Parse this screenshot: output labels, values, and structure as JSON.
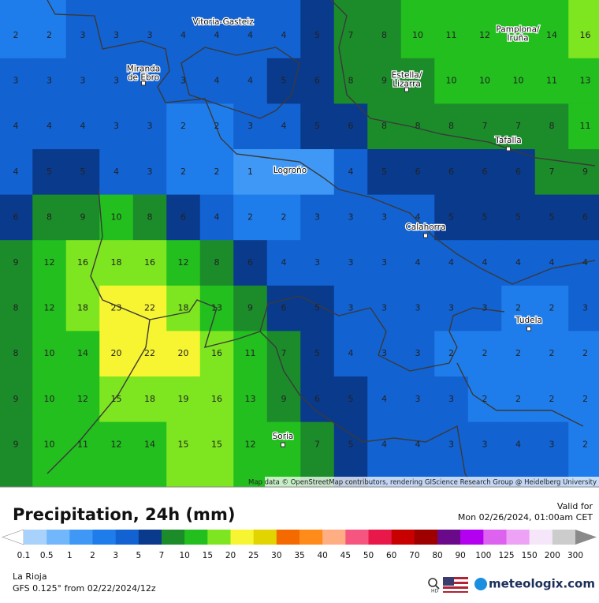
{
  "header": {
    "title": "Precipitation, 24h (mm)",
    "valid_label": "Valid for",
    "valid_time": "Mon 02/26/2024, 01:00am CET"
  },
  "map": {
    "attribution": "Map data © OpenStreetMap contributors, rendering GIScience Research Group @ Heidelberg University",
    "cities": [
      "Vitoria-Gasteiz",
      "Miranda\nde Ebro",
      "Pamplona/\nIruña",
      "Estella/\nLizarra",
      "Tafalla",
      "Logroño",
      "Calahorra",
      "Tudela",
      "Soria"
    ],
    "grid": {
      "rows": [
        [
          2,
          2,
          3,
          3,
          3,
          4,
          4,
          4,
          4,
          5,
          7,
          8,
          10,
          11,
          12,
          null,
          14,
          16
        ],
        [
          3,
          3,
          3,
          3,
          null,
          3,
          4,
          4,
          5,
          6,
          8,
          9,
          null,
          10,
          10,
          10,
          11,
          13
        ],
        [
          4,
          4,
          4,
          3,
          3,
          2,
          2,
          3,
          4,
          5,
          6,
          8,
          8,
          8,
          7,
          7,
          8,
          11
        ],
        [
          4,
          5,
          5,
          4,
          3,
          2,
          2,
          1,
          null,
          null,
          4,
          5,
          6,
          6,
          6,
          6,
          7,
          9
        ],
        [
          6,
          8,
          9,
          10,
          8,
          6,
          4,
          2,
          2,
          3,
          3,
          3,
          4,
          5,
          5,
          5,
          5,
          6
        ],
        [
          9,
          12,
          16,
          18,
          16,
          12,
          8,
          6,
          4,
          3,
          3,
          3,
          4,
          4,
          4,
          4,
          4,
          4
        ],
        [
          8,
          12,
          18,
          23,
          22,
          18,
          13,
          9,
          6,
          5,
          3,
          3,
          3,
          3,
          3,
          2,
          2,
          3
        ],
        [
          8,
          10,
          14,
          20,
          22,
          20,
          16,
          11,
          7,
          5,
          4,
          3,
          3,
          2,
          2,
          2,
          2,
          2
        ],
        [
          9,
          10,
          12,
          15,
          18,
          19,
          16,
          13,
          9,
          6,
          5,
          4,
          3,
          3,
          2,
          2,
          2,
          2
        ],
        [
          9,
          10,
          11,
          12,
          14,
          15,
          15,
          12,
          null,
          7,
          5,
          4,
          4,
          3,
          3,
          4,
          3,
          2
        ]
      ]
    }
  },
  "legend": {
    "ticks": [
      0.1,
      0.5,
      1,
      2,
      3,
      5,
      7,
      10,
      15,
      20,
      25,
      30,
      35,
      40,
      45,
      50,
      60,
      70,
      80,
      90,
      100,
      125,
      150,
      200,
      300
    ],
    "colors": [
      "#a8d2fc",
      "#72b6fb",
      "#3f98f6",
      "#1f7deb",
      "#1262d2",
      "#0a3a8c",
      "#1c8c2b",
      "#22bf1e",
      "#7ee620",
      "#f7f531",
      "#e2d400",
      "#f56a00",
      "#ff8c1a",
      "#ffad82",
      "#f5557f",
      "#e8184a",
      "#c80000",
      "#9e0000",
      "#6a0a8a",
      "#b400f0",
      "#dd62f0",
      "#eea2f5",
      "#f5e6fa",
      "#cccccc"
    ],
    "low_color": "#ffffff",
    "high_color": "#8a8a8a"
  },
  "footer": {
    "region": "La Rioja",
    "model": "GFS 0.125° from  02/22/2024/12z",
    "brand": "meteologix.com"
  }
}
